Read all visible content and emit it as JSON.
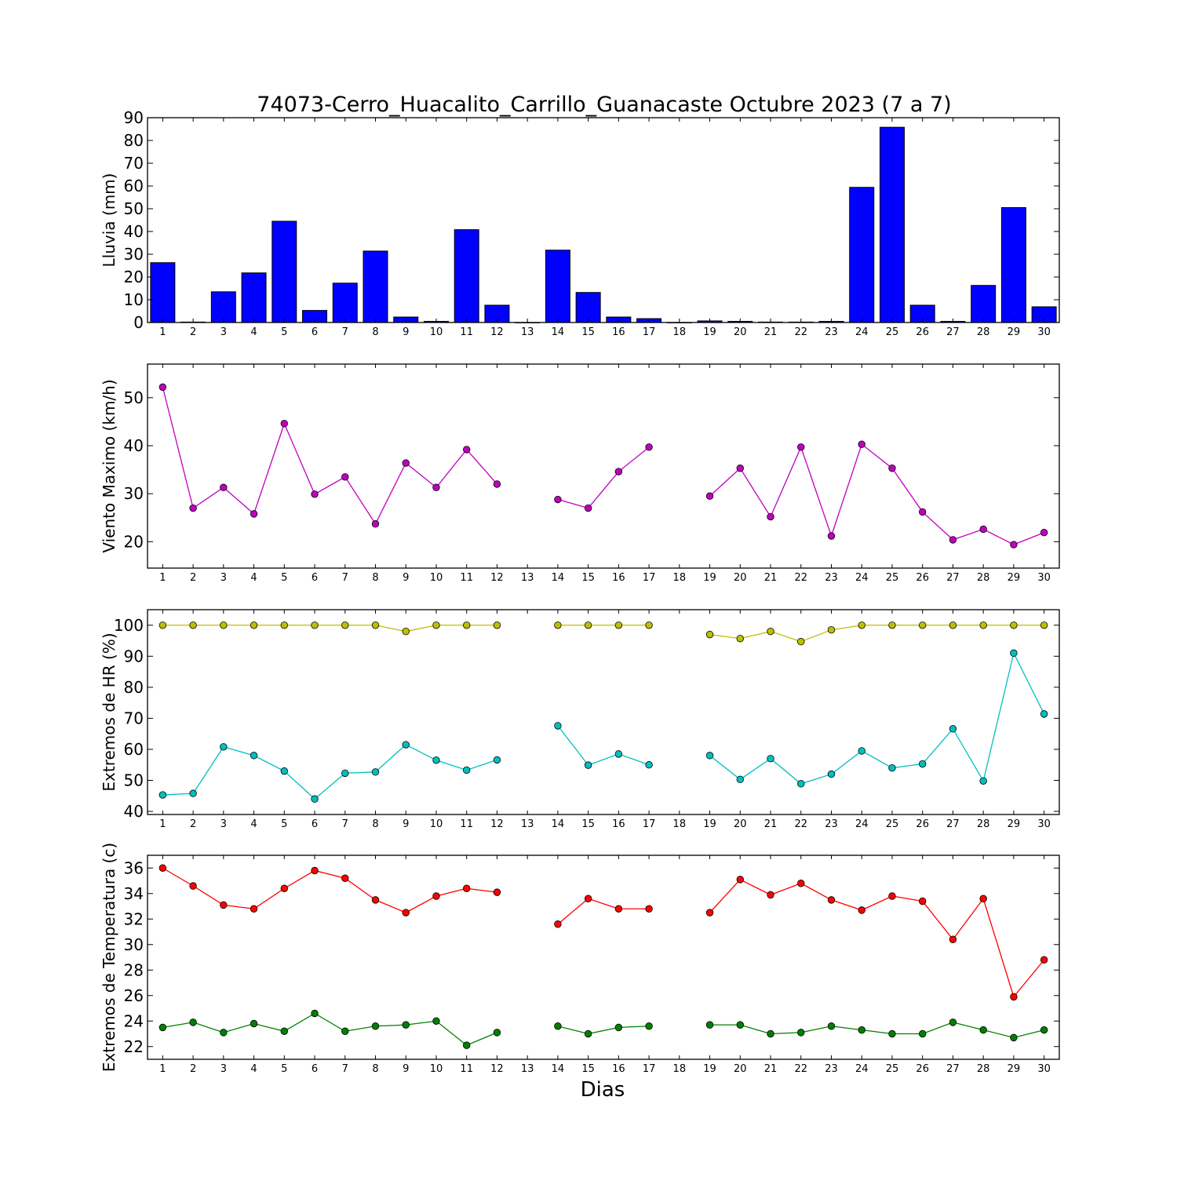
{
  "chart_data": {
    "title": "74073-Cerro_Huacalito_Carrillo_Guanacaste Octubre 2023  (7 a 7)",
    "xlabel": "Dias",
    "days": [
      1,
      2,
      3,
      4,
      5,
      6,
      7,
      8,
      9,
      10,
      11,
      12,
      13,
      14,
      15,
      16,
      17,
      18,
      19,
      20,
      21,
      22,
      23,
      24,
      25,
      26,
      27,
      28,
      29,
      30
    ],
    "panels": [
      {
        "type": "bar",
        "ylabel": "Lluvia (mm)",
        "ylim": [
          0,
          90
        ],
        "yticks": [
          0,
          10,
          20,
          30,
          40,
          50,
          60,
          70,
          80,
          90
        ],
        "series": [
          {
            "color": "#0000ff",
            "values": [
              26.3,
              0.2,
              13.5,
              21.8,
              44.5,
              5.3,
              17.3,
              31.4,
              2.4,
              0.5,
              40.8,
              7.6,
              0,
              31.8,
              13.2,
              2.4,
              1.7,
              0,
              0.7,
              0.5,
              0.2,
              0.2,
              0.5,
              59.4,
              85.8,
              7.6,
              0.5,
              16.3,
              50.5,
              6.9
            ]
          }
        ]
      },
      {
        "type": "line",
        "ylabel": "Viento Maximo (km/h)",
        "ylim": [
          14.5,
          57
        ],
        "yticks": [
          20,
          30,
          40,
          50
        ],
        "series": [
          {
            "color": "#bf00bf",
            "values": [
              52.2,
              27.0,
              31.3,
              25.8,
              44.6,
              29.9,
              33.5,
              23.7,
              36.4,
              31.3,
              39.2,
              32.0,
              null,
              28.8,
              27.0,
              34.6,
              39.7,
              null,
              29.5,
              35.3,
              25.2,
              39.7,
              21.2,
              40.3,
              35.3,
              26.2,
              20.4,
              22.6,
              19.4,
              21.9
            ]
          }
        ]
      },
      {
        "type": "line",
        "ylabel": "Extremos de HR (%)",
        "ylim": [
          39,
          105
        ],
        "yticks": [
          40,
          50,
          60,
          70,
          80,
          90,
          100
        ],
        "series": [
          {
            "color": "#bfbf00",
            "values": [
              100,
              100,
              100,
              100,
              100,
              100,
              100,
              100,
              98,
              100,
              100,
              100,
              null,
              100,
              100,
              100,
              100,
              null,
              97,
              95.7,
              98,
              94.7,
              98.5,
              100,
              100,
              100,
              100,
              100,
              100,
              100
            ]
          },
          {
            "color": "#00bfbf",
            "values": [
              45.3,
              45.8,
              60.8,
              58.0,
              53.0,
              44.0,
              52.3,
              52.7,
              61.5,
              56.5,
              53.3,
              56.6,
              null,
              67.6,
              54.9,
              58.5,
              55.0,
              null,
              58.0,
              50.3,
              57.0,
              48.9,
              52.0,
              59.5,
              54.0,
              55.3,
              66.6,
              49.8,
              91.0,
              71.4
            ]
          }
        ]
      },
      {
        "type": "line",
        "ylabel": "Extremos de Temperatura (c)",
        "ylim": [
          21,
          37
        ],
        "yticks": [
          22,
          24,
          26,
          28,
          30,
          32,
          34,
          36
        ],
        "series": [
          {
            "color": "#ff0000",
            "values": [
              36.0,
              34.6,
              33.1,
              32.8,
              34.4,
              35.8,
              35.2,
              33.5,
              32.5,
              33.8,
              34.4,
              34.1,
              null,
              31.6,
              33.6,
              32.8,
              32.8,
              null,
              32.5,
              35.1,
              33.9,
              34.8,
              33.5,
              32.7,
              33.8,
              33.4,
              30.4,
              33.6,
              25.9,
              28.8
            ]
          },
          {
            "color": "#008000",
            "values": [
              23.5,
              23.9,
              23.1,
              23.8,
              23.2,
              24.6,
              23.2,
              23.6,
              23.7,
              24.0,
              22.1,
              23.1,
              null,
              23.6,
              23.0,
              23.5,
              23.6,
              null,
              23.7,
              23.7,
              23.0,
              23.1,
              23.6,
              23.3,
              23.0,
              23.0,
              23.9,
              23.3,
              22.7,
              23.3
            ]
          }
        ]
      }
    ]
  }
}
